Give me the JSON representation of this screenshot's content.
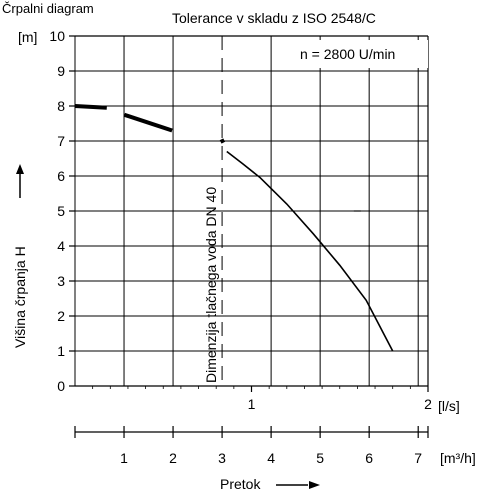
{
  "chart_data": {
    "type": "line",
    "title": "Črpalni diagram",
    "subtitle": "Tolerance v skladu z ISO 2548/C",
    "annotation": "n = 2800 U/min",
    "vertical_annotation": "Dimenzija tlačnega voda DN 40",
    "ylabel": "Višina črpanja H",
    "y_unit": "[m]",
    "x_unit_primary": "[l/s]",
    "x_unit_secondary": "[m³/h]",
    "xlabel": "Pretok",
    "ylim": [
      0,
      10
    ],
    "xlim_ls": [
      0,
      2
    ],
    "xlim_m3h": [
      0,
      7.2
    ],
    "y_ticks": [
      "0",
      "1",
      "2",
      "3",
      "4",
      "5",
      "6",
      "7",
      "8",
      "9",
      "10"
    ],
    "x_ticks_ls": [
      {
        "value": 1,
        "label": "1"
      },
      {
        "value": 2,
        "label": "2"
      }
    ],
    "x_ticks_m3h": [
      {
        "value": 1,
        "label": "1"
      },
      {
        "value": 2,
        "label": "2"
      },
      {
        "value": 3,
        "label": "3"
      },
      {
        "value": 4,
        "label": "4"
      },
      {
        "value": 5,
        "label": "5"
      },
      {
        "value": 6,
        "label": "6"
      },
      {
        "value": 7,
        "label": "7"
      }
    ],
    "grid": true,
    "series": [
      {
        "dashed_segments": [
          [
            [
              0.0,
              8.0
            ],
            [
              0.18,
              7.95
            ]
          ],
          [
            [
              0.28,
              7.75
            ],
            [
              0.55,
              7.3
            ]
          ],
          [
            [
              0.83,
              7.05
            ],
            [
              0.84,
              6.95
            ]
          ]
        ],
        "solid": [
          [
            0.86,
            6.7
          ],
          [
            0.95,
            6.35
          ],
          [
            1.05,
            5.95
          ],
          [
            1.2,
            5.2
          ],
          [
            1.35,
            4.35
          ],
          [
            1.5,
            3.45
          ],
          [
            1.65,
            2.45
          ],
          [
            1.8,
            1.0
          ]
        ]
      }
    ],
    "dash_at_5": [
      [
        1.58,
        5.0
      ],
      [
        1.62,
        5.0
      ]
    ]
  },
  "colors": {
    "line": "#000000",
    "grid": "#000000",
    "background": "#ffffff"
  }
}
